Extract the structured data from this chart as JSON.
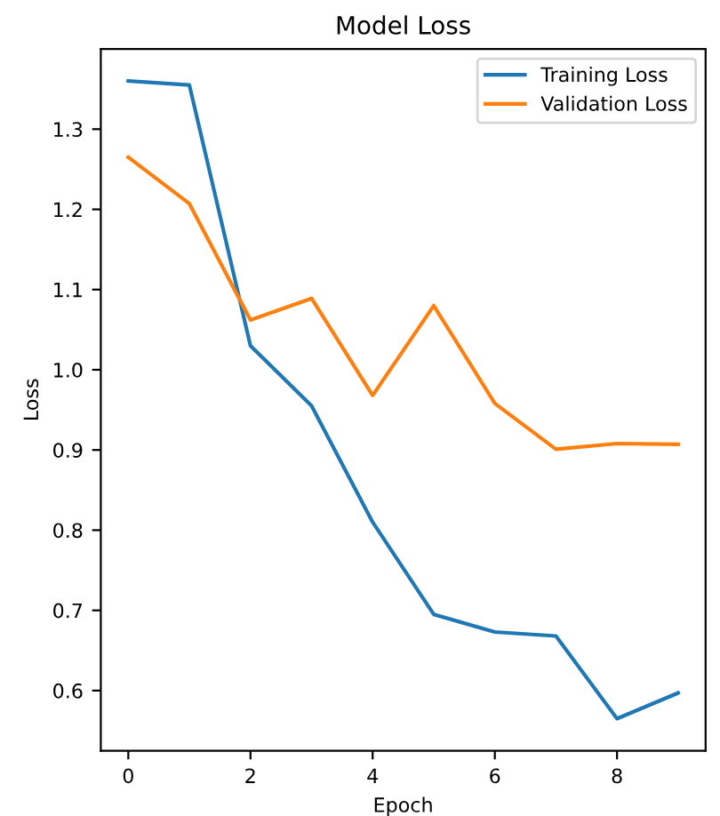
{
  "chart_data": {
    "type": "line",
    "title": "Model Loss",
    "xlabel": "Epoch",
    "ylabel": "Loss",
    "x": [
      0,
      1,
      2,
      3,
      4,
      5,
      6,
      7,
      8,
      9
    ],
    "series": [
      {
        "name": "Training Loss",
        "color": "#1f77b4",
        "values": [
          1.36,
          1.355,
          1.03,
          0.955,
          0.81,
          0.695,
          0.673,
          0.668,
          0.565,
          0.597
        ]
      },
      {
        "name": "Validation Loss",
        "color": "#ff7f0e",
        "values": [
          1.265,
          1.207,
          1.062,
          1.089,
          0.968,
          1.08,
          0.958,
          0.901,
          0.908,
          0.907
        ]
      }
    ],
    "xlim": [
      -0.45,
      9.45
    ],
    "ylim": [
      0.525,
      1.4
    ],
    "xticks": [
      0,
      2,
      4,
      6,
      8
    ],
    "yticks": [
      0.6,
      0.7,
      0.8,
      0.9,
      {
        "value": 1.0,
        "label": "1.0"
      },
      1.1,
      1.2,
      1.3
    ],
    "legend": "top right",
    "grid": false
  }
}
